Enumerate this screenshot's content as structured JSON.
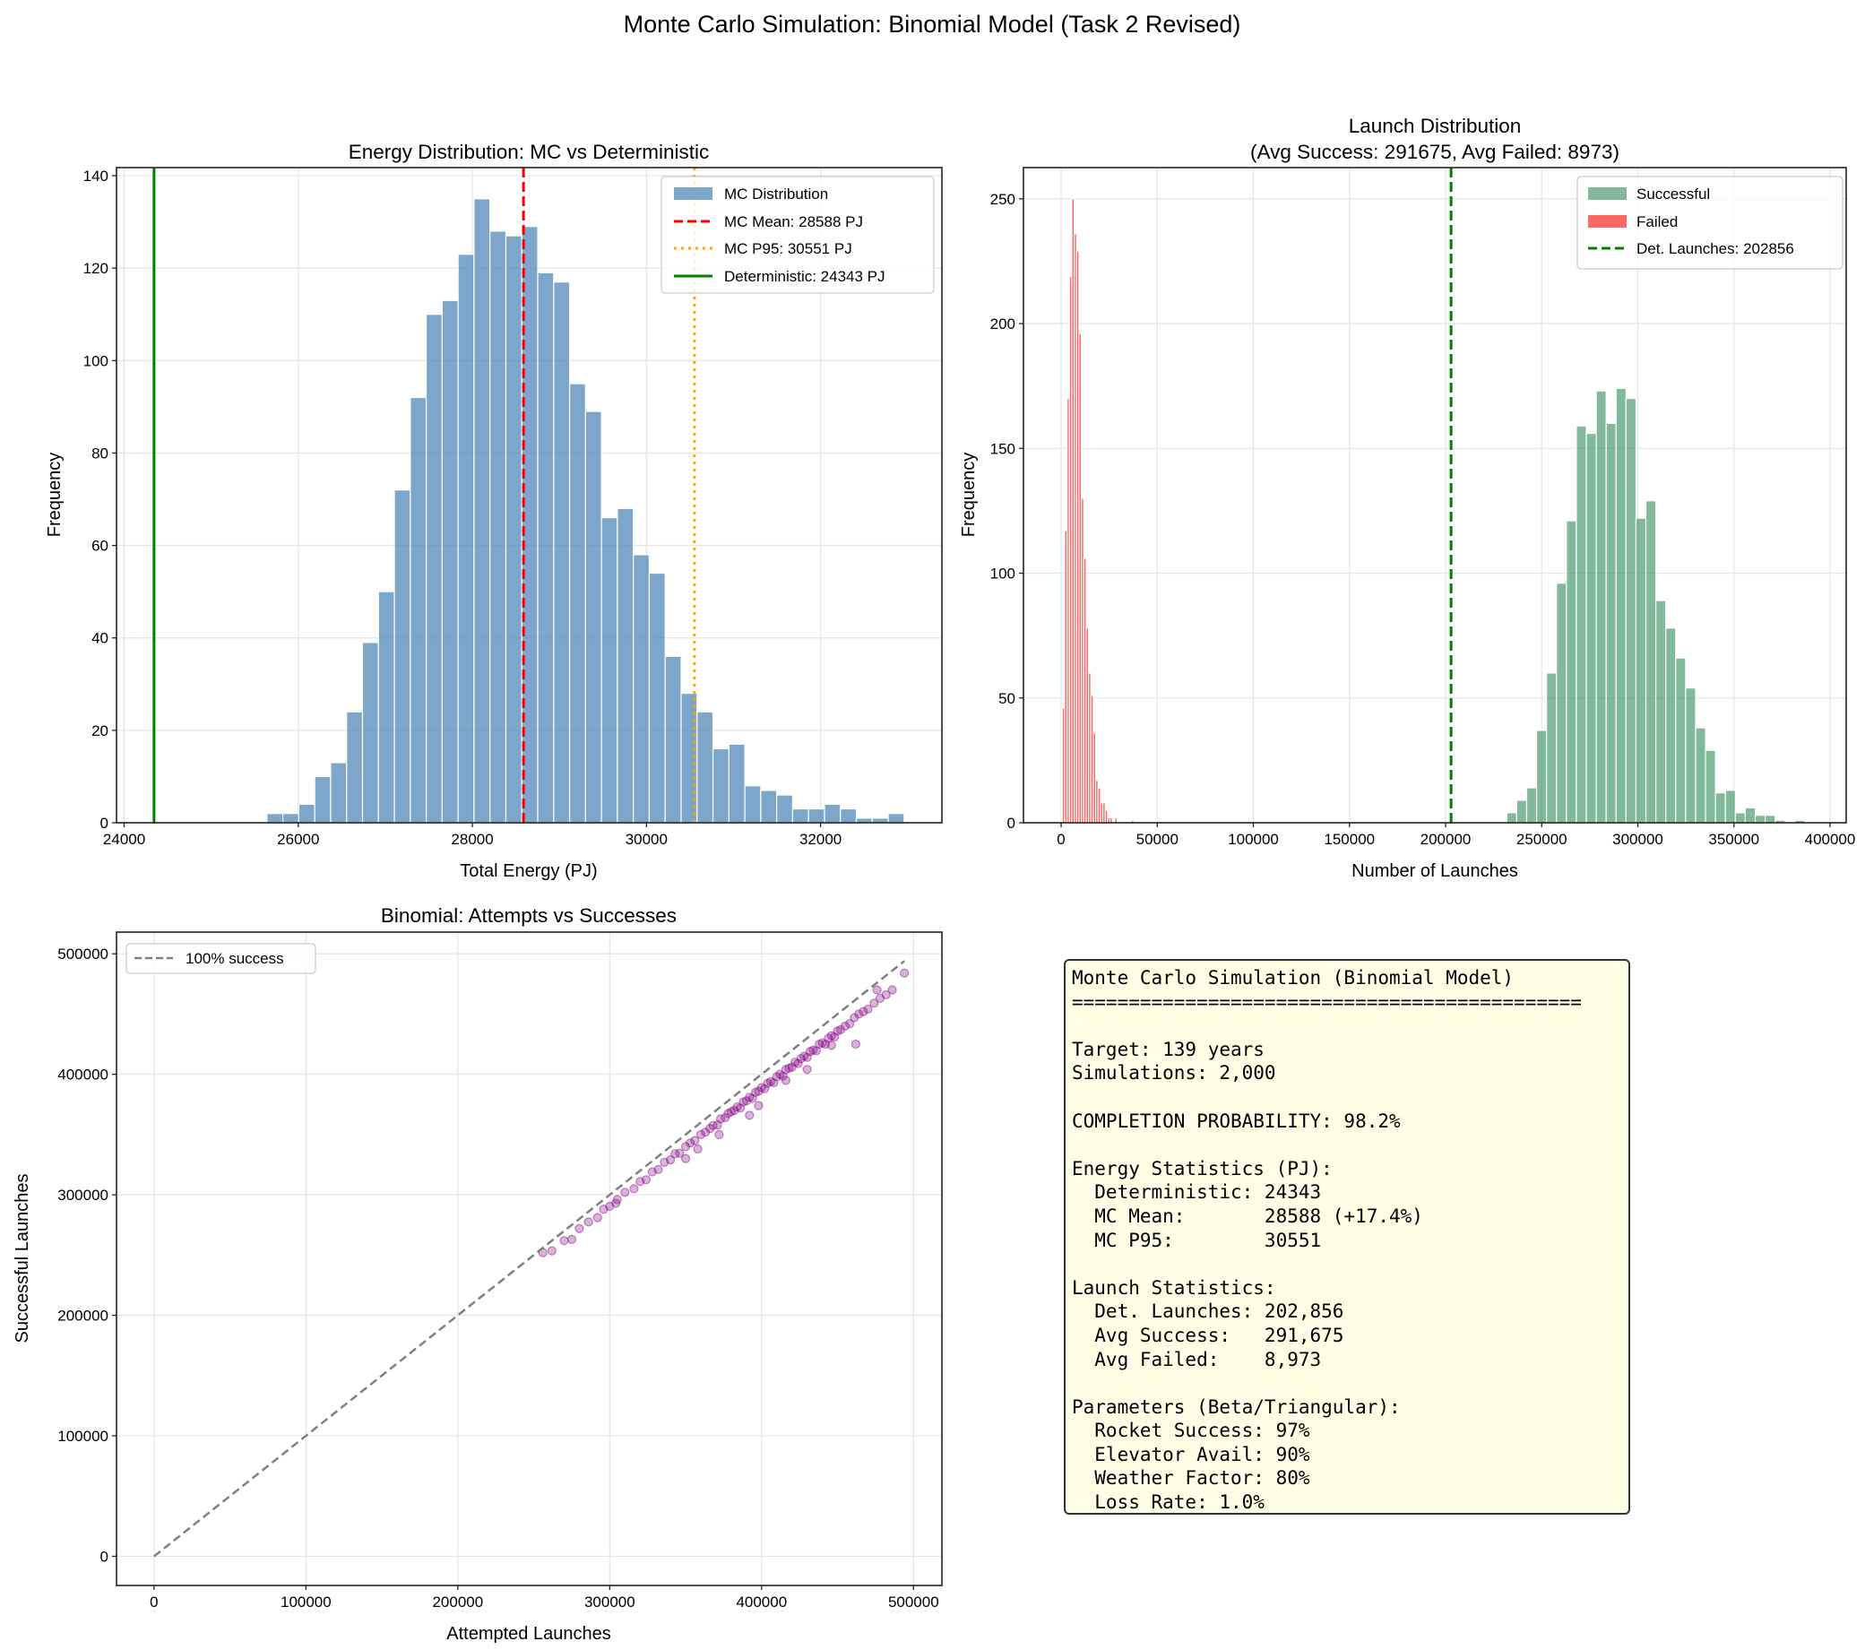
{
  "figure": {
    "suptitle": "Monte Carlo Simulation: Binomial Model (Task 2 Revised)"
  },
  "chart_data": [
    {
      "type": "bar",
      "title": "Energy Distribution: MC vs Deterministic",
      "xlabel": "Total Energy (PJ)",
      "ylabel": "Frequency",
      "xlim": [
        23912,
        33394
      ],
      "ylim": [
        0,
        141.75
      ],
      "xticks": [
        24000,
        26000,
        28000,
        30000,
        32000
      ],
      "yticks": [
        0,
        20,
        40,
        60,
        80,
        100,
        120,
        140
      ],
      "grid": true,
      "legend_placement": "upper right",
      "histogram": {
        "name": "MC Distribution",
        "color": "#4682b4",
        "bin_start": 25640,
        "bin_width": 183,
        "counts": [
          2,
          2,
          4,
          10,
          13,
          24,
          39,
          50,
          72,
          92,
          110,
          113,
          123,
          135,
          128,
          127,
          129,
          119,
          117,
          95,
          89,
          66,
          68,
          58,
          54,
          36,
          28,
          24,
          16,
          17,
          8,
          7,
          6,
          3,
          3,
          4,
          3,
          1,
          1,
          2
        ]
      },
      "vlines": [
        {
          "name": "MC Mean: 28588 PJ",
          "x": 28588,
          "color": "#ff0000",
          "style": "dashed"
        },
        {
          "name": "MC P95: 30551 PJ",
          "x": 30551,
          "color": "#ffa500",
          "style": "dotted"
        },
        {
          "name": "Deterministic: 24343 PJ",
          "x": 24343,
          "color": "#008000",
          "style": "solid"
        }
      ]
    },
    {
      "type": "bar",
      "title": "Launch Distribution",
      "subtitle": "(Avg Success: 291675, Avg Failed: 8973)",
      "xlabel": "Number of Launches",
      "ylabel": "Frequency",
      "xlim": [
        -19600,
        408400
      ],
      "ylim": [
        0,
        262.5
      ],
      "xticks": [
        0,
        50000,
        100000,
        150000,
        200000,
        250000,
        300000,
        350000,
        400000
      ],
      "yticks": [
        0,
        50,
        100,
        150,
        200,
        250
      ],
      "grid": true,
      "legend_placement": "upper right",
      "series": [
        {
          "name": "Successful",
          "color": "#2e8b57",
          "bin_start": 231840,
          "bin_width": 5170,
          "counts": [
            4,
            9,
            14,
            37,
            60,
            96,
            121,
            159,
            156,
            173,
            160,
            174,
            170,
            122,
            129,
            89,
            78,
            66,
            54,
            38,
            29,
            12,
            13,
            4,
            6,
            3,
            3,
            1,
            0,
            1
          ]
        },
        {
          "name": "Failed",
          "color": "#ff0000",
          "bin_start": 600,
          "bin_width": 1240,
          "counts": [
            46,
            117,
            170,
            219,
            250,
            236,
            229,
            196,
            130,
            106,
            78,
            60,
            51,
            36,
            17,
            14,
            8,
            8,
            5,
            2,
            2,
            0,
            2,
            0,
            0,
            0,
            0,
            0,
            0,
            1
          ]
        }
      ],
      "vlines": [
        {
          "name": "Det. Launches: 202856",
          "x": 202856,
          "color": "#008000",
          "style": "dashed"
        }
      ]
    },
    {
      "type": "scatter",
      "title": "Binomial: Attempts vs Successes",
      "xlabel": "Attempted Launches",
      "ylabel": "Successful Launches",
      "xlim": [
        -24700,
        518700
      ],
      "ylim": [
        -24200,
        518000
      ],
      "xticks": [
        0,
        100000,
        200000,
        300000,
        400000,
        500000
      ],
      "yticks": [
        0,
        100000,
        200000,
        300000,
        400000,
        500000
      ],
      "grid": true,
      "legend_placement": "upper left",
      "reference_line": {
        "name": "100% success",
        "from": [
          0,
          0
        ],
        "to": [
          494000,
          494000
        ],
        "color": "#808080",
        "style": "dashed"
      },
      "point_color": "#800080",
      "points": [
        [
          256000,
          252000
        ],
        [
          262000,
          253500
        ],
        [
          270000,
          262000
        ],
        [
          275000,
          263000
        ],
        [
          280000,
          272000
        ],
        [
          286000,
          277500
        ],
        [
          292000,
          281000
        ],
        [
          296000,
          288000
        ],
        [
          300000,
          290500
        ],
        [
          304000,
          293000
        ],
        [
          310000,
          302000
        ],
        [
          316000,
          305000
        ],
        [
          320000,
          311000
        ],
        [
          324000,
          312500
        ],
        [
          328000,
          319000
        ],
        [
          332000,
          321000
        ],
        [
          336000,
          327000
        ],
        [
          340000,
          329000
        ],
        [
          343000,
          334000
        ],
        [
          346000,
          334500
        ],
        [
          350000,
          340000
        ],
        [
          353000,
          343000
        ],
        [
          356000,
          345000
        ],
        [
          358000,
          338000
        ],
        [
          360000,
          350000
        ],
        [
          363000,
          352000
        ],
        [
          366000,
          355000
        ],
        [
          368000,
          357500
        ],
        [
          371000,
          358000
        ],
        [
          373000,
          363000
        ],
        [
          376000,
          364000
        ],
        [
          378000,
          367500
        ],
        [
          380000,
          369000
        ],
        [
          382000,
          370000
        ],
        [
          384000,
          373000
        ],
        [
          386000,
          372000
        ],
        [
          388000,
          377000
        ],
        [
          390000,
          378000
        ],
        [
          392000,
          381000
        ],
        [
          394000,
          380000
        ],
        [
          396000,
          385000
        ],
        [
          398000,
          386000
        ],
        [
          400000,
          389000
        ],
        [
          402000,
          388000
        ],
        [
          404000,
          392500
        ],
        [
          406000,
          394000
        ],
        [
          408000,
          393000
        ],
        [
          410000,
          398000
        ],
        [
          412000,
          400000
        ],
        [
          414000,
          398500
        ],
        [
          416000,
          404000
        ],
        [
          418000,
          405000
        ],
        [
          420000,
          406000
        ],
        [
          422000,
          410000
        ],
        [
          424000,
          409000
        ],
        [
          426000,
          413000
        ],
        [
          428000,
          415000
        ],
        [
          430000,
          414000
        ],
        [
          432000,
          419000
        ],
        [
          434000,
          420000
        ],
        [
          436000,
          419500
        ],
        [
          438000,
          425000
        ],
        [
          440000,
          426000
        ],
        [
          442000,
          425000
        ],
        [
          444000,
          430000
        ],
        [
          446000,
          432000
        ],
        [
          448000,
          431000
        ],
        [
          450000,
          436000
        ],
        [
          452000,
          437000
        ],
        [
          455000,
          440000
        ],
        [
          458000,
          442000
        ],
        [
          461000,
          447000
        ],
        [
          464000,
          450000
        ],
        [
          467000,
          452000
        ],
        [
          470000,
          454000
        ],
        [
          474000,
          459000
        ],
        [
          478000,
          463000
        ],
        [
          482000,
          466000
        ],
        [
          486000,
          470000
        ],
        [
          494000,
          484000
        ],
        [
          462000,
          425000
        ],
        [
          430000,
          404000
        ],
        [
          392000,
          366000
        ],
        [
          350000,
          330000
        ],
        [
          305000,
          296000
        ],
        [
          416000,
          395000
        ],
        [
          446000,
          424000
        ],
        [
          476000,
          470000
        ],
        [
          372000,
          350000
        ],
        [
          398000,
          374000
        ]
      ]
    }
  ],
  "stats_box": {
    "lines": [
      "Monte Carlo Simulation (Binomial Model)",
      "=============================================",
      "",
      "Target: 139 years",
      "Simulations: 2,000",
      "",
      "COMPLETION PROBABILITY: 98.2%",
      "",
      "Energy Statistics (PJ):",
      "  Deterministic: 24343",
      "  MC Mean:       28588 (+17.4%)",
      "  MC P95:        30551",
      "",
      "Launch Statistics:",
      "  Det. Launches: 202,856",
      "  Avg Success:   291,675",
      "  Avg Failed:    8,973",
      "",
      "Parameters (Beta/Triangular):",
      "  Rocket Success: 97%",
      "  Elevator Avail: 90%",
      "  Weather Factor: 80%",
      "  Loss Rate: 1.0%"
    ]
  }
}
